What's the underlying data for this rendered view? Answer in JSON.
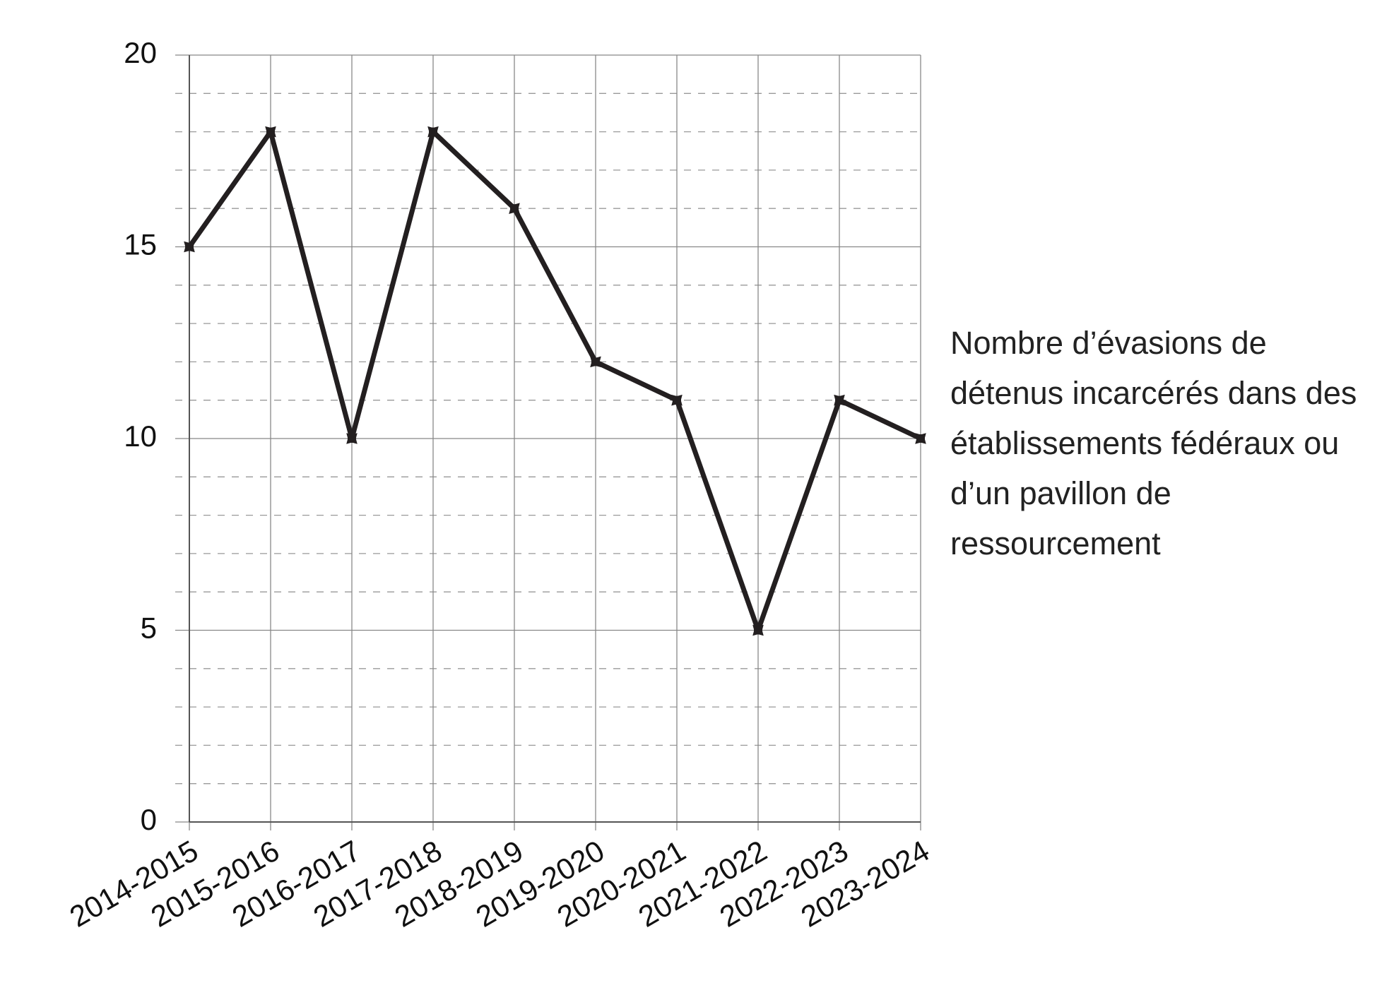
{
  "chart_data": {
    "type": "line",
    "categories": [
      "2014-2015",
      "2015-2016",
      "2016-2017",
      "2017-2018",
      "2018-2019",
      "2019-2020",
      "2020-2021",
      "2021-2022",
      "2022-2023",
      "2023-2024"
    ],
    "series": [
      {
        "name": "Nombre d’évasions de détenus incarcérés dans des établissements fédéraux ou d’un pavillon de ressourcement",
        "color": "#231f20",
        "values": [
          15,
          18,
          10,
          18,
          16,
          12,
          11,
          5,
          11,
          10
        ]
      }
    ],
    "ylim": [
      0,
      20
    ],
    "yticks": [
      0,
      5,
      10,
      15,
      20
    ],
    "grid": true,
    "legend": "right"
  }
}
